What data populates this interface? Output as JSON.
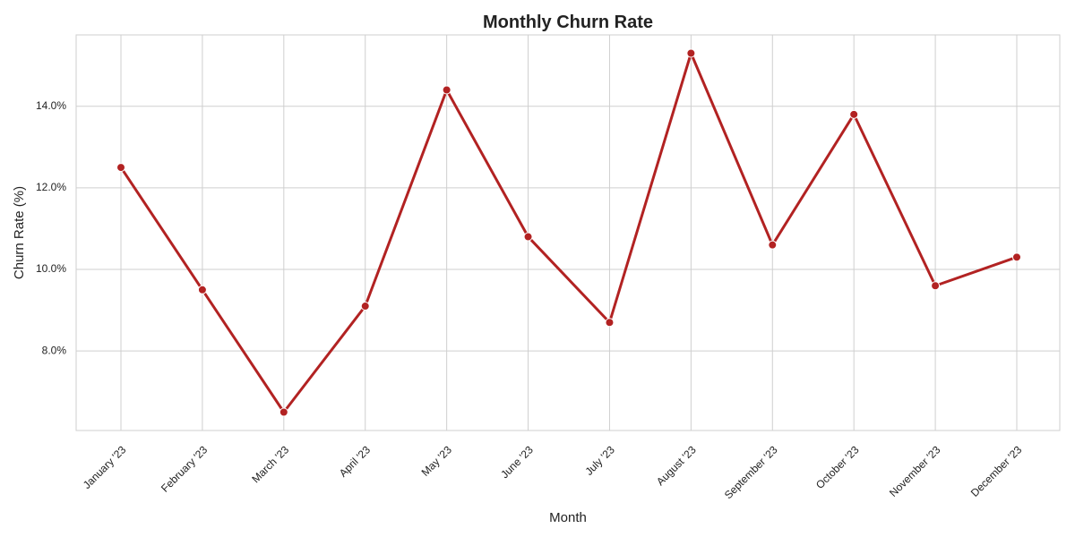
{
  "chart_data": {
    "type": "line",
    "title": "Monthly Churn Rate",
    "xlabel": "Month",
    "ylabel": "Churn Rate (%)",
    "categories": [
      "January '23",
      "February '23",
      "March '23",
      "April '23",
      "May '23",
      "June '23",
      "July '23",
      "August '23",
      "September '23",
      "October '23",
      "November '23",
      "December '23"
    ],
    "series": [
      {
        "values": [
          12.5,
          9.5,
          6.5,
          9.1,
          14.4,
          10.8,
          8.7,
          15.3,
          10.6,
          13.8,
          9.6,
          10.3
        ],
        "color": "#b22222"
      }
    ],
    "yticks": [
      8,
      10,
      12,
      14
    ],
    "ytick_labels": [
      "8.0%",
      "10.0%",
      "12.0%",
      "14.0%"
    ],
    "ylim": [
      6.05,
      15.75
    ],
    "grid": true,
    "marker": "circle"
  }
}
